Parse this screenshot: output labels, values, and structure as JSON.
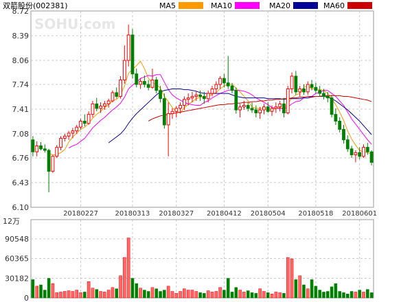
{
  "title": "双箭股份(002381)",
  "watermark": "SOHU.com",
  "volume_unit": "12万",
  "colors": {
    "up": "#ff0000",
    "up_fill": "#ff6666",
    "down": "#008000",
    "ma5": "#ff9900",
    "ma10": "#ff00ff",
    "ma20": "#000099",
    "ma60": "#cc0000",
    "grid": "#c8c8c8",
    "frame": "#999999"
  },
  "legend": [
    {
      "name": "MA5",
      "key": "ma5"
    },
    {
      "name": "MA10",
      "key": "ma10"
    },
    {
      "name": "MA20",
      "key": "ma20"
    },
    {
      "name": "MA60",
      "key": "ma60"
    }
  ],
  "chart_data": [
    {
      "type": "candlestick",
      "title": "双箭股份(002381)",
      "ylim": [
        6.1,
        8.72
      ],
      "y_ticks": [
        "8.72",
        "8.39",
        "8.06",
        "7.74",
        "7.41",
        "7.08",
        "6.76",
        "6.43",
        "6.10"
      ],
      "x_tick_labels": [
        {
          "index": 12,
          "label": "20180227"
        },
        {
          "index": 25,
          "label": "20180313"
        },
        {
          "index": 36,
          "label": "20180327"
        },
        {
          "index": 48,
          "label": "20180412"
        },
        {
          "index": 59,
          "label": "20180504"
        },
        {
          "index": 71,
          "label": "20180518"
        },
        {
          "index": 82,
          "label": "20180601"
        }
      ],
      "grid": true,
      "legend_position": "top",
      "ohlc": [
        [
          7.0,
          7.05,
          6.78,
          6.84
        ],
        [
          6.84,
          6.98,
          6.78,
          6.92
        ],
        [
          6.92,
          6.97,
          6.86,
          6.88
        ],
        [
          6.88,
          6.94,
          6.83,
          6.86
        ],
        [
          6.86,
          6.88,
          6.3,
          6.58
        ],
        [
          6.58,
          6.8,
          6.56,
          6.78
        ],
        [
          6.78,
          6.93,
          6.76,
          6.9
        ],
        [
          6.9,
          7.05,
          6.86,
          7.02
        ],
        [
          7.02,
          7.08,
          6.98,
          7.05
        ],
        [
          7.05,
          7.12,
          7.0,
          7.09
        ],
        [
          7.09,
          7.16,
          7.02,
          7.12
        ],
        [
          7.12,
          7.2,
          7.08,
          7.17
        ],
        [
          7.17,
          7.28,
          7.14,
          7.25
        ],
        [
          7.25,
          7.34,
          7.18,
          7.22
        ],
        [
          7.22,
          7.38,
          7.2,
          7.34
        ],
        [
          7.34,
          7.52,
          7.3,
          7.48
        ],
        [
          7.48,
          7.56,
          7.38,
          7.42
        ],
        [
          7.42,
          7.5,
          7.36,
          7.45
        ],
        [
          7.45,
          7.52,
          7.4,
          7.48
        ],
        [
          7.48,
          7.55,
          7.43,
          7.52
        ],
        [
          7.52,
          7.66,
          7.5,
          7.63
        ],
        [
          7.63,
          7.7,
          7.55,
          7.58
        ],
        [
          7.58,
          7.85,
          7.55,
          7.8
        ],
        [
          7.8,
          8.26,
          7.75,
          8.06
        ],
        [
          8.06,
          8.54,
          7.98,
          8.4
        ],
        [
          8.4,
          8.48,
          7.82,
          7.88
        ],
        [
          7.88,
          7.95,
          7.7,
          7.74
        ],
        [
          7.74,
          7.82,
          7.68,
          7.78
        ],
        [
          7.78,
          7.86,
          7.7,
          7.74
        ],
        [
          7.74,
          7.8,
          7.66,
          7.7
        ],
        [
          7.7,
          7.95,
          7.68,
          7.8
        ],
        [
          7.8,
          7.84,
          7.62,
          7.66
        ],
        [
          7.66,
          7.72,
          7.5,
          7.55
        ],
        [
          7.55,
          7.62,
          7.15,
          7.2
        ],
        [
          7.2,
          7.5,
          6.78,
          7.35
        ],
        [
          7.35,
          7.42,
          7.28,
          7.38
        ],
        [
          7.38,
          7.45,
          7.3,
          7.42
        ],
        [
          7.42,
          7.5,
          7.35,
          7.46
        ],
        [
          7.46,
          7.58,
          7.4,
          7.54
        ],
        [
          7.54,
          7.62,
          7.46,
          7.56
        ],
        [
          7.56,
          7.64,
          7.5,
          7.58
        ],
        [
          7.58,
          7.65,
          7.52,
          7.6
        ],
        [
          7.6,
          7.66,
          7.52,
          7.58
        ],
        [
          7.58,
          7.64,
          7.48,
          7.55
        ],
        [
          7.55,
          7.66,
          7.5,
          7.62
        ],
        [
          7.62,
          7.72,
          7.58,
          7.68
        ],
        [
          7.68,
          7.78,
          7.62,
          7.74
        ],
        [
          7.74,
          7.85,
          7.68,
          7.82
        ],
        [
          7.82,
          7.88,
          7.7,
          7.76
        ],
        [
          7.76,
          8.12,
          7.68,
          7.72
        ],
        [
          7.72,
          7.76,
          7.62,
          7.66
        ],
        [
          7.66,
          7.7,
          7.35,
          7.4
        ],
        [
          7.4,
          7.48,
          7.3,
          7.44
        ],
        [
          7.44,
          7.52,
          7.4,
          7.46
        ],
        [
          7.46,
          7.5,
          7.38,
          7.42
        ],
        [
          7.42,
          7.5,
          7.36,
          7.4
        ],
        [
          7.4,
          7.46,
          7.3,
          7.36
        ],
        [
          7.36,
          7.44,
          7.28,
          7.4
        ],
        [
          7.4,
          7.48,
          7.34,
          7.44
        ],
        [
          7.44,
          7.5,
          7.36,
          7.38
        ],
        [
          7.38,
          7.46,
          7.32,
          7.42
        ],
        [
          7.42,
          7.5,
          7.36,
          7.44
        ],
        [
          7.44,
          7.52,
          7.38,
          7.48
        ],
        [
          7.48,
          7.56,
          7.3,
          7.36
        ],
        [
          7.36,
          7.72,
          7.34,
          7.68
        ],
        [
          7.68,
          7.9,
          7.62,
          7.85
        ],
        [
          7.85,
          7.92,
          7.6,
          7.64
        ],
        [
          7.64,
          7.72,
          7.58,
          7.68
        ],
        [
          7.68,
          7.74,
          7.6,
          7.64
        ],
        [
          7.64,
          7.78,
          7.6,
          7.74
        ],
        [
          7.74,
          7.8,
          7.66,
          7.7
        ],
        [
          7.7,
          7.76,
          7.62,
          7.66
        ],
        [
          7.66,
          7.72,
          7.58,
          7.62
        ],
        [
          7.62,
          7.68,
          7.54,
          7.58
        ],
        [
          7.58,
          7.64,
          7.5,
          7.56
        ],
        [
          7.56,
          7.6,
          7.3,
          7.34
        ],
        [
          7.34,
          7.42,
          7.2,
          7.25
        ],
        [
          7.25,
          7.3,
          7.1,
          7.14
        ],
        [
          7.14,
          7.2,
          6.95,
          7.0
        ],
        [
          7.0,
          7.06,
          6.84,
          6.88
        ],
        [
          6.88,
          6.92,
          6.76,
          6.8
        ],
        [
          6.8,
          6.86,
          6.7,
          6.83
        ],
        [
          6.83,
          6.9,
          6.74,
          6.78
        ],
        [
          6.78,
          6.94,
          6.76,
          6.9
        ],
        [
          6.9,
          6.96,
          6.8,
          6.84
        ],
        [
          6.84,
          6.86,
          6.66,
          6.7
        ]
      ],
      "series": [
        {
          "name": "MA5",
          "key": "ma5",
          "values": [
            null,
            null,
            null,
            null,
            6.82,
            6.8,
            6.8,
            6.83,
            6.87,
            6.97,
            7.04,
            7.09,
            7.14,
            7.17,
            7.22,
            7.29,
            7.34,
            7.38,
            7.43,
            7.47,
            7.52,
            7.54,
            7.6,
            7.72,
            7.89,
            7.94,
            7.99,
            8.05,
            7.95,
            7.82,
            7.76,
            7.74,
            7.69,
            7.58,
            7.51,
            7.43,
            7.38,
            7.36,
            7.43,
            7.47,
            7.51,
            7.55,
            7.57,
            7.57,
            7.58,
            7.61,
            7.63,
            7.68,
            7.72,
            7.74,
            7.74,
            7.69,
            7.64,
            7.58,
            7.52,
            7.44,
            7.42,
            7.42,
            7.42,
            7.4,
            7.4,
            7.42,
            7.43,
            7.42,
            7.48,
            7.56,
            7.6,
            7.62,
            7.7,
            7.72,
            7.68,
            7.68,
            7.67,
            7.66,
            7.62,
            7.55,
            7.47,
            7.37,
            7.26,
            7.12,
            7.01,
            6.93,
            6.86,
            6.84,
            6.83,
            6.81
          ]
        },
        {
          "name": "MA10",
          "key": "ma10",
          "values": [
            null,
            null,
            null,
            null,
            null,
            null,
            null,
            null,
            null,
            6.89,
            6.92,
            6.94,
            6.98,
            7.02,
            7.09,
            7.16,
            7.21,
            7.26,
            7.3,
            7.35,
            7.4,
            7.44,
            7.49,
            7.57,
            7.68,
            7.73,
            7.77,
            7.82,
            7.84,
            7.86,
            7.85,
            7.87,
            7.87,
            7.77,
            7.67,
            7.6,
            7.56,
            7.53,
            7.5,
            7.48,
            7.47,
            7.46,
            7.46,
            7.5,
            7.52,
            7.56,
            7.59,
            7.62,
            7.64,
            7.66,
            7.67,
            7.66,
            7.66,
            7.65,
            7.63,
            7.6,
            7.56,
            7.53,
            7.5,
            7.47,
            7.43,
            7.42,
            7.42,
            7.41,
            7.44,
            7.48,
            7.51,
            7.52,
            7.56,
            7.56,
            7.58,
            7.62,
            7.63,
            7.66,
            7.66,
            7.62,
            7.58,
            7.52,
            7.46,
            7.37,
            7.28,
            7.21,
            7.14,
            7.07,
            7.0,
            6.94
          ]
        },
        {
          "name": "MA20",
          "key": "ma20",
          "values": [
            null,
            null,
            null,
            null,
            null,
            null,
            null,
            null,
            null,
            null,
            null,
            null,
            null,
            null,
            null,
            null,
            null,
            null,
            null,
            6.96,
            7.0,
            7.04,
            7.08,
            7.14,
            7.22,
            7.29,
            7.35,
            7.4,
            7.45,
            7.5,
            7.55,
            7.6,
            7.64,
            7.66,
            7.67,
            7.68,
            7.68,
            7.68,
            7.67,
            7.67,
            7.66,
            7.65,
            7.63,
            7.62,
            7.62,
            7.62,
            7.62,
            7.62,
            7.62,
            7.62,
            7.6,
            7.58,
            7.57,
            7.56,
            7.56,
            7.56,
            7.56,
            7.56,
            7.56,
            7.55,
            7.55,
            7.55,
            7.55,
            7.54,
            7.55,
            7.55,
            7.55,
            7.55,
            7.56,
            7.56,
            7.57,
            7.58,
            7.58,
            7.58,
            7.57,
            7.55,
            7.52,
            7.48,
            7.44,
            7.4,
            7.35,
            7.3,
            7.25,
            7.19,
            7.13,
            7.07
          ]
        },
        {
          "name": "MA60",
          "key": "ma60",
          "values": [
            null,
            null,
            null,
            null,
            null,
            null,
            null,
            null,
            null,
            null,
            null,
            null,
            null,
            null,
            null,
            null,
            null,
            null,
            null,
            null,
            null,
            null,
            null,
            null,
            null,
            null,
            null,
            null,
            null,
            7.25,
            7.28,
            7.3,
            7.32,
            7.33,
            7.34,
            7.35,
            7.36,
            7.37,
            7.38,
            7.39,
            7.4,
            7.41,
            7.42,
            7.43,
            7.44,
            7.45,
            7.46,
            7.47,
            7.47,
            7.48,
            7.48,
            7.49,
            7.49,
            7.5,
            7.5,
            7.51,
            7.51,
            7.52,
            7.52,
            7.53,
            7.53,
            7.54,
            7.54,
            7.55,
            7.55,
            7.56,
            7.56,
            7.57,
            7.57,
            7.58,
            7.58,
            7.58,
            7.58,
            7.59,
            7.59,
            7.59,
            7.59,
            7.59,
            7.58,
            7.58,
            7.57,
            7.56,
            7.55,
            7.54,
            7.53,
            7.51
          ]
        }
      ]
    },
    {
      "type": "bar",
      "title": "",
      "unit_label": "12万",
      "ylim": [
        0,
        120000
      ],
      "y_ticks": [
        "90548",
        "60365",
        "30182",
        "0"
      ],
      "values": [
        28000,
        18000,
        20000,
        12000,
        30000,
        22000,
        8000,
        9000,
        10000,
        11000,
        10000,
        12000,
        8000,
        9000,
        25000,
        15000,
        13000,
        10000,
        9000,
        12000,
        16000,
        14000,
        34000,
        62000,
        92000,
        30000,
        22000,
        15000,
        12000,
        10000,
        16000,
        14000,
        10000,
        12000,
        18000,
        10000,
        7000,
        10000,
        14000,
        12000,
        12000,
        10000,
        8000,
        7000,
        11000,
        9000,
        10000,
        16000,
        12000,
        30000,
        9000,
        16000,
        12000,
        9000,
        11000,
        8000,
        7000,
        14000,
        10000,
        8000,
        6000,
        9000,
        8000,
        7000,
        62000,
        60000,
        28000,
        34000,
        20000,
        14000,
        28000,
        18000,
        12000,
        9000,
        10000,
        17000,
        22000,
        10000,
        8000,
        6000,
        10000,
        9000,
        12000,
        9000,
        13000,
        8000
      ],
      "up": [
        false,
        true,
        false,
        false,
        false,
        true,
        true,
        true,
        true,
        true,
        true,
        true,
        true,
        false,
        true,
        true,
        false,
        true,
        true,
        true,
        true,
        false,
        true,
        true,
        true,
        false,
        false,
        true,
        false,
        false,
        true,
        false,
        false,
        false,
        true,
        true,
        true,
        true,
        true,
        true,
        true,
        true,
        false,
        false,
        true,
        true,
        true,
        true,
        false,
        false,
        false,
        false,
        true,
        true,
        false,
        false,
        false,
        true,
        true,
        false,
        true,
        true,
        true,
        false,
        true,
        true,
        false,
        true,
        false,
        true,
        false,
        false,
        false,
        false,
        false,
        false,
        false,
        false,
        false,
        false,
        false,
        true,
        false,
        true,
        false,
        false
      ]
    }
  ]
}
